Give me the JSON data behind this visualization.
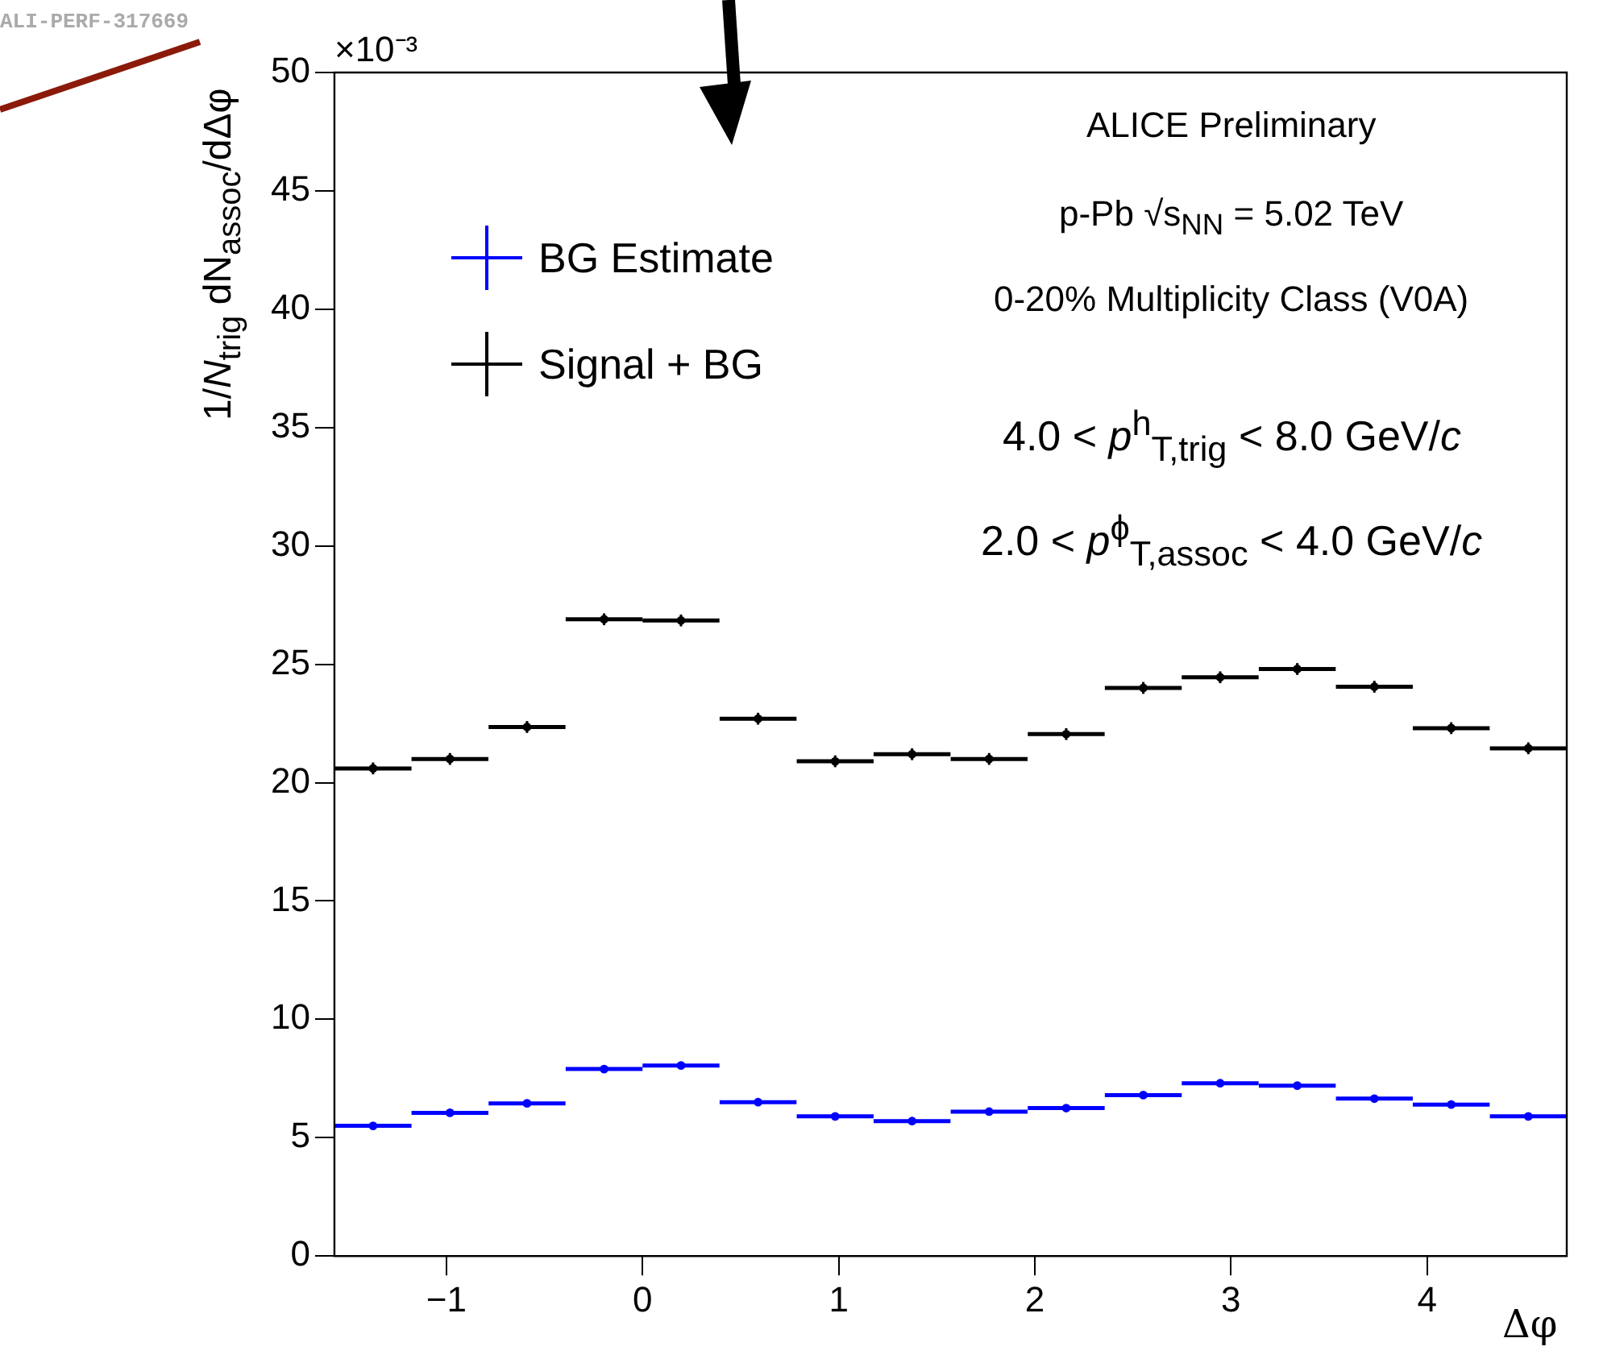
{
  "chart_data": {
    "type": "scatter",
    "xlabel": "Δφ",
    "ylabel": "1/N$_{trig}$ dN$_{assoc}$/dΔφ",
    "annotations": [
      "ALI-PERF-317669",
      "×10⁻³",
      "ALICE Preliminary",
      "p-Pb √s$_{NN}$ = 5.02 TeV",
      "0-20% Multiplicity Class (V0A)",
      "4.0 < p$^{h}$$_{T,trig}$ < 8.0 GeV/c",
      "2.0 < p$^{ϕ}$$_{T,assoc}$ < 4.0 GeV/c"
    ],
    "x": [
      -1.374,
      -0.982,
      -0.589,
      -0.196,
      0.196,
      0.589,
      0.982,
      1.374,
      1.767,
      2.16,
      2.553,
      2.945,
      3.338,
      3.731,
      4.123,
      4.516
    ],
    "series": [
      {
        "name": "BG Estimate",
        "color": "#0000ff",
        "values": [
          5.5,
          6.05,
          6.45,
          7.9,
          8.05,
          6.5,
          5.9,
          5.7,
          6.1,
          6.25,
          6.8,
          7.3,
          7.2,
          6.65,
          6.4,
          5.9
        ],
        "errors": [
          0.1,
          0.1,
          0.1,
          0.1,
          0.1,
          0.1,
          0.1,
          0.1,
          0.1,
          0.1,
          0.1,
          0.1,
          0.1,
          0.1,
          0.1,
          0.1
        ],
        "xerrors": [
          0.196,
          0.196,
          0.196,
          0.196,
          0.196,
          0.196,
          0.196,
          0.196,
          0.196,
          0.196,
          0.196,
          0.196,
          0.196,
          0.196,
          0.196,
          0.196
        ]
      },
      {
        "name": "Signal + BG",
        "color": "#000000",
        "values": [
          20.6,
          21.0,
          22.35,
          26.9,
          26.85,
          22.7,
          20.9,
          21.2,
          21.0,
          22.05,
          24.0,
          24.45,
          24.8,
          24.05,
          22.3,
          21.45
        ],
        "errors": [
          0.25,
          0.25,
          0.25,
          0.25,
          0.25,
          0.25,
          0.25,
          0.25,
          0.25,
          0.25,
          0.25,
          0.25,
          0.25,
          0.25,
          0.25,
          0.25
        ],
        "xerrors": [
          0.196,
          0.196,
          0.196,
          0.196,
          0.196,
          0.196,
          0.196,
          0.196,
          0.196,
          0.196,
          0.196,
          0.196,
          0.196,
          0.196,
          0.196,
          0.196
        ]
      }
    ],
    "xlim": [
      -1.571,
      4.712
    ],
    "xticks": [
      -1,
      0,
      1,
      2,
      3,
      4
    ],
    "ylim": [
      0,
      50
    ],
    "yticks": [
      0,
      5,
      10,
      15,
      20,
      25,
      30,
      35,
      40,
      45,
      50
    ],
    "grid": false,
    "legend": "top left",
    "marker": "circle"
  }
}
